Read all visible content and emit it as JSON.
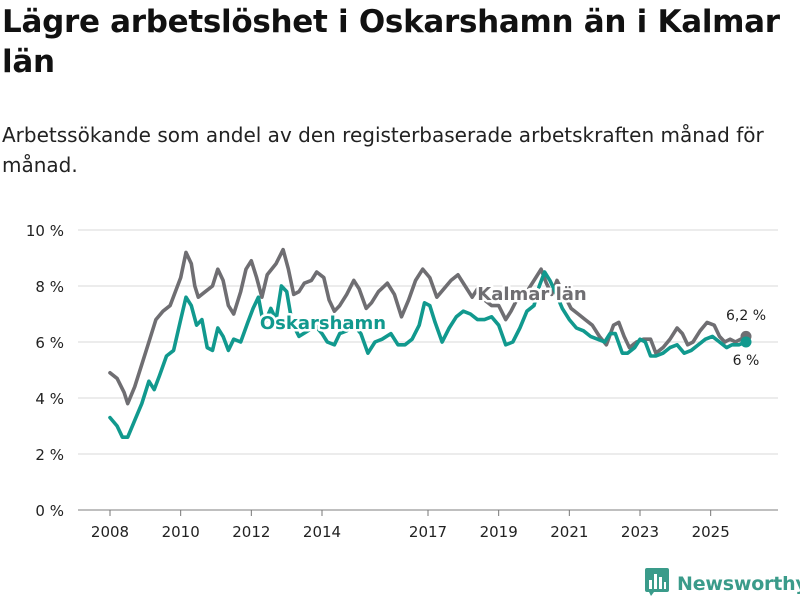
{
  "title": "Lägre arbetslöshet i Oskarshamn än i Kalmar län",
  "subtitle": "Arbetssökande som andel av den registerbaserade arbetskraften månad för månad.",
  "brand": {
    "name": "Newsworthy",
    "color": "#3a9b8a",
    "icon": "bar-chart-logo-icon"
  },
  "colors": {
    "kalmar": "#6f6e72",
    "oskarshamn": "#11998e",
    "grid": "#d9d9d9",
    "text": "#222222"
  },
  "chart_data": {
    "type": "line",
    "title": "Lägre arbetslöshet i Oskarshamn än i Kalmar län",
    "xlabel": "",
    "ylabel": "",
    "x_ticks": [
      "2008",
      "2010",
      "2012",
      "2014",
      "2017",
      "2019",
      "2021",
      "2023",
      "2025"
    ],
    "y_ticks": [
      "0 %",
      "2 %",
      "4 %",
      "6 %",
      "8 %",
      "10 %"
    ],
    "ylim": [
      0,
      10
    ],
    "series": [
      {
        "name": "Kalmar län",
        "color": "#6f6e72",
        "points": [
          [
            2008.0,
            4.9
          ],
          [
            2008.2,
            4.7
          ],
          [
            2008.4,
            4.2
          ],
          [
            2008.5,
            3.8
          ],
          [
            2008.7,
            4.4
          ],
          [
            2008.9,
            5.2
          ],
          [
            2009.1,
            6.0
          ],
          [
            2009.3,
            6.8
          ],
          [
            2009.5,
            7.1
          ],
          [
            2009.7,
            7.3
          ],
          [
            2009.85,
            7.8
          ],
          [
            2010.0,
            8.3
          ],
          [
            2010.15,
            9.2
          ],
          [
            2010.3,
            8.8
          ],
          [
            2010.4,
            8.0
          ],
          [
            2010.5,
            7.6
          ],
          [
            2010.7,
            7.8
          ],
          [
            2010.9,
            8.0
          ],
          [
            2011.05,
            8.6
          ],
          [
            2011.2,
            8.2
          ],
          [
            2011.35,
            7.3
          ],
          [
            2011.5,
            7.0
          ],
          [
            2011.7,
            7.8
          ],
          [
            2011.85,
            8.6
          ],
          [
            2012.0,
            8.9
          ],
          [
            2012.15,
            8.3
          ],
          [
            2012.3,
            7.6
          ],
          [
            2012.45,
            8.4
          ],
          [
            2012.7,
            8.8
          ],
          [
            2012.9,
            9.3
          ],
          [
            2013.05,
            8.6
          ],
          [
            2013.2,
            7.7
          ],
          [
            2013.35,
            7.8
          ],
          [
            2013.5,
            8.1
          ],
          [
            2013.7,
            8.2
          ],
          [
            2013.85,
            8.5
          ],
          [
            2014.05,
            8.3
          ],
          [
            2014.2,
            7.5
          ],
          [
            2014.35,
            7.1
          ],
          [
            2014.5,
            7.3
          ],
          [
            2014.7,
            7.7
          ],
          [
            2014.9,
            8.2
          ],
          [
            2015.05,
            7.9
          ],
          [
            2015.25,
            7.2
          ],
          [
            2015.4,
            7.4
          ],
          [
            2015.6,
            7.8
          ],
          [
            2015.85,
            8.1
          ],
          [
            2016.05,
            7.7
          ],
          [
            2016.25,
            6.9
          ],
          [
            2016.45,
            7.5
          ],
          [
            2016.65,
            8.2
          ],
          [
            2016.85,
            8.6
          ],
          [
            2017.05,
            8.3
          ],
          [
            2017.25,
            7.6
          ],
          [
            2017.45,
            7.9
          ],
          [
            2017.65,
            8.2
          ],
          [
            2017.85,
            8.4
          ],
          [
            2018.05,
            8.0
          ],
          [
            2018.25,
            7.6
          ],
          [
            2018.4,
            7.9
          ],
          [
            2018.6,
            7.5
          ],
          [
            2018.8,
            7.3
          ],
          [
            2019.0,
            7.3
          ],
          [
            2019.2,
            6.8
          ],
          [
            2019.35,
            7.1
          ],
          [
            2019.55,
            7.6
          ],
          [
            2019.7,
            7.5
          ],
          [
            2019.85,
            7.9
          ],
          [
            2020.05,
            8.3
          ],
          [
            2020.2,
            8.6
          ],
          [
            2020.35,
            8.1
          ],
          [
            2020.5,
            7.7
          ],
          [
            2020.65,
            8.2
          ],
          [
            2020.85,
            7.7
          ],
          [
            2021.05,
            7.2
          ],
          [
            2021.25,
            7.0
          ],
          [
            2021.45,
            6.8
          ],
          [
            2021.65,
            6.6
          ],
          [
            2021.85,
            6.2
          ],
          [
            2022.05,
            5.9
          ],
          [
            2022.25,
            6.6
          ],
          [
            2022.4,
            6.7
          ],
          [
            2022.55,
            6.2
          ],
          [
            2022.7,
            5.8
          ],
          [
            2022.9,
            6.0
          ],
          [
            2023.1,
            6.1
          ],
          [
            2023.3,
            6.1
          ],
          [
            2023.45,
            5.6
          ],
          [
            2023.65,
            5.8
          ],
          [
            2023.85,
            6.1
          ],
          [
            2024.05,
            6.5
          ],
          [
            2024.2,
            6.3
          ],
          [
            2024.35,
            5.9
          ],
          [
            2024.5,
            6.0
          ],
          [
            2024.7,
            6.4
          ],
          [
            2024.9,
            6.7
          ],
          [
            2025.1,
            6.6
          ],
          [
            2025.25,
            6.2
          ],
          [
            2025.4,
            6.0
          ],
          [
            2025.55,
            6.1
          ],
          [
            2025.7,
            6.0
          ],
          [
            2025.85,
            6.1
          ],
          [
            2026.0,
            6.2
          ]
        ],
        "label": "Kalmar län",
        "end_label": "6,2 %"
      },
      {
        "name": "Oskarshamn",
        "color": "#11998e",
        "points": [
          [
            2008.0,
            3.3
          ],
          [
            2008.2,
            3.0
          ],
          [
            2008.35,
            2.6
          ],
          [
            2008.5,
            2.6
          ],
          [
            2008.7,
            3.2
          ],
          [
            2008.9,
            3.8
          ],
          [
            2009.1,
            4.6
          ],
          [
            2009.25,
            4.3
          ],
          [
            2009.4,
            4.8
          ],
          [
            2009.6,
            5.5
          ],
          [
            2009.8,
            5.7
          ],
          [
            2010.0,
            6.8
          ],
          [
            2010.15,
            7.6
          ],
          [
            2010.3,
            7.3
          ],
          [
            2010.45,
            6.6
          ],
          [
            2010.6,
            6.8
          ],
          [
            2010.75,
            5.8
          ],
          [
            2010.9,
            5.7
          ],
          [
            2011.05,
            6.5
          ],
          [
            2011.2,
            6.2
          ],
          [
            2011.35,
            5.7
          ],
          [
            2011.5,
            6.1
          ],
          [
            2011.7,
            6.0
          ],
          [
            2011.9,
            6.7
          ],
          [
            2012.05,
            7.2
          ],
          [
            2012.2,
            7.6
          ],
          [
            2012.35,
            6.6
          ],
          [
            2012.55,
            7.2
          ],
          [
            2012.7,
            6.8
          ],
          [
            2012.85,
            8.0
          ],
          [
            2013.0,
            7.8
          ],
          [
            2013.15,
            6.7
          ],
          [
            2013.35,
            6.2
          ],
          [
            2013.6,
            6.4
          ],
          [
            2013.8,
            6.6
          ],
          [
            2014.0,
            6.3
          ],
          [
            2014.15,
            6.0
          ],
          [
            2014.35,
            5.9
          ],
          [
            2014.5,
            6.3
          ],
          [
            2014.7,
            6.4
          ],
          [
            2014.9,
            6.6
          ],
          [
            2015.1,
            6.3
          ],
          [
            2015.3,
            5.6
          ],
          [
            2015.5,
            6.0
          ],
          [
            2015.7,
            6.1
          ],
          [
            2015.95,
            6.3
          ],
          [
            2016.15,
            5.9
          ],
          [
            2016.35,
            5.9
          ],
          [
            2016.55,
            6.1
          ],
          [
            2016.75,
            6.6
          ],
          [
            2016.9,
            7.4
          ],
          [
            2017.05,
            7.3
          ],
          [
            2017.2,
            6.7
          ],
          [
            2017.4,
            6.0
          ],
          [
            2017.6,
            6.5
          ],
          [
            2017.8,
            6.9
          ],
          [
            2018.0,
            7.1
          ],
          [
            2018.2,
            7.0
          ],
          [
            2018.4,
            6.8
          ],
          [
            2018.6,
            6.8
          ],
          [
            2018.8,
            6.9
          ],
          [
            2019.0,
            6.6
          ],
          [
            2019.2,
            5.9
          ],
          [
            2019.4,
            6.0
          ],
          [
            2019.6,
            6.5
          ],
          [
            2019.8,
            7.1
          ],
          [
            2020.0,
            7.3
          ],
          [
            2020.15,
            8.0
          ],
          [
            2020.3,
            8.5
          ],
          [
            2020.45,
            8.2
          ],
          [
            2020.6,
            7.8
          ],
          [
            2020.8,
            7.2
          ],
          [
            2021.0,
            6.8
          ],
          [
            2021.2,
            6.5
          ],
          [
            2021.4,
            6.4
          ],
          [
            2021.6,
            6.2
          ],
          [
            2021.8,
            6.1
          ],
          [
            2022.0,
            6.0
          ],
          [
            2022.15,
            6.3
          ],
          [
            2022.3,
            6.3
          ],
          [
            2022.5,
            5.6
          ],
          [
            2022.65,
            5.6
          ],
          [
            2022.85,
            5.8
          ],
          [
            2023.0,
            6.1
          ],
          [
            2023.15,
            6.0
          ],
          [
            2023.3,
            5.5
          ],
          [
            2023.45,
            5.5
          ],
          [
            2023.65,
            5.6
          ],
          [
            2023.85,
            5.8
          ],
          [
            2024.05,
            5.9
          ],
          [
            2024.25,
            5.6
          ],
          [
            2024.45,
            5.7
          ],
          [
            2024.65,
            5.9
          ],
          [
            2024.85,
            6.1
          ],
          [
            2025.05,
            6.2
          ],
          [
            2025.25,
            6.0
          ],
          [
            2025.45,
            5.8
          ],
          [
            2025.6,
            5.9
          ],
          [
            2025.8,
            5.9
          ],
          [
            2026.0,
            6.0
          ]
        ],
        "label": "Oskarshamn",
        "end_label": "6 %"
      }
    ],
    "grid": true,
    "legend": "none (direct labels)"
  }
}
